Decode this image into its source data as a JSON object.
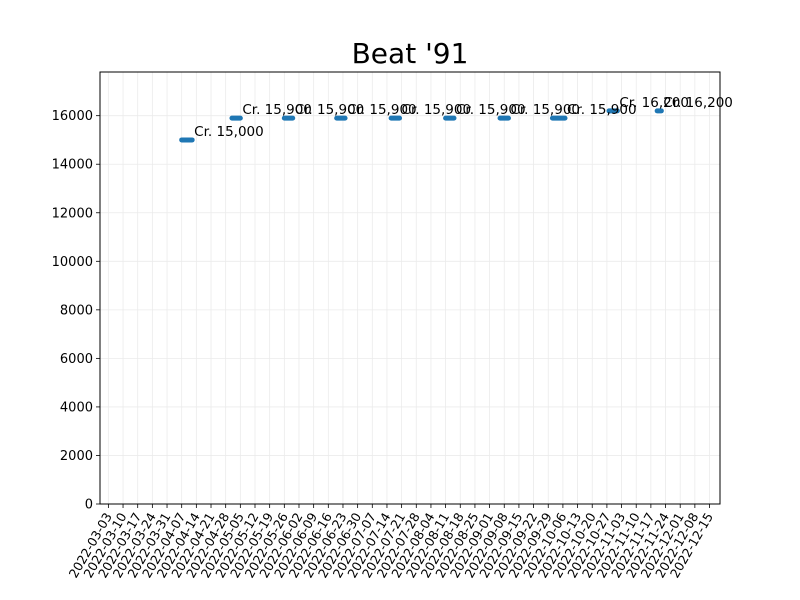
{
  "chart_data": {
    "type": "line",
    "title": "Beat '91",
    "xlabel": "",
    "ylabel": "",
    "x_type": "date",
    "xlim": [
      "2022-02-27",
      "2022-12-20"
    ],
    "ylim": [
      0,
      17800
    ],
    "y_ticks": [
      0,
      2000,
      4000,
      6000,
      8000,
      10000,
      12000,
      14000,
      16000
    ],
    "x_tick_labels": [
      "2022-03-03",
      "2022-03-10",
      "2022-03-17",
      "2022-03-24",
      "2022-03-31",
      "2022-04-07",
      "2022-04-14",
      "2022-04-21",
      "2022-04-28",
      "2022-05-05",
      "2022-05-12",
      "2022-05-19",
      "2022-05-26",
      "2022-06-02",
      "2022-06-09",
      "2022-06-16",
      "2022-06-23",
      "2022-06-30",
      "2022-07-07",
      "2022-07-14",
      "2022-07-21",
      "2022-07-28",
      "2022-08-04",
      "2022-08-11",
      "2022-08-18",
      "2022-08-25",
      "2022-09-01",
      "2022-09-08",
      "2022-09-15",
      "2022-09-22",
      "2022-09-29",
      "2022-10-06",
      "2022-10-13",
      "2022-10-20",
      "2022-10-27",
      "2022-11-03",
      "2022-11-10",
      "2022-11-17",
      "2022-11-24",
      "2022-12-01",
      "2022-12-08",
      "2022-12-15"
    ],
    "grid": true,
    "color": "#1f77b4",
    "segments": [
      {
        "start": "2022-04-07",
        "end": "2022-04-12",
        "value": 15000,
        "label": "Cr. 15,000"
      },
      {
        "start": "2022-05-01",
        "end": "2022-05-05",
        "value": 15900,
        "label": "Cr. 15,900"
      },
      {
        "start": "2022-05-26",
        "end": "2022-05-30",
        "value": 15900,
        "label": "Cr. 15,900"
      },
      {
        "start": "2022-06-20",
        "end": "2022-06-24",
        "value": 15900,
        "label": "Cr. 15,900"
      },
      {
        "start": "2022-07-16",
        "end": "2022-07-20",
        "value": 15900,
        "label": "Cr. 15,900"
      },
      {
        "start": "2022-08-11",
        "end": "2022-08-15",
        "value": 15900,
        "label": "Cr. 15,900"
      },
      {
        "start": "2022-09-06",
        "end": "2022-09-10",
        "value": 15900,
        "label": "Cr. 15,900"
      },
      {
        "start": "2022-10-01",
        "end": "2022-10-07",
        "value": 15900,
        "label": "Cr. 15,900"
      },
      {
        "start": "2022-10-28",
        "end": "2022-11-01",
        "value": 16200,
        "label": "Cr. 16,200"
      },
      {
        "start": "2022-11-20",
        "end": "2022-11-22",
        "value": 16200,
        "label": "Cr. 16,200"
      }
    ]
  }
}
